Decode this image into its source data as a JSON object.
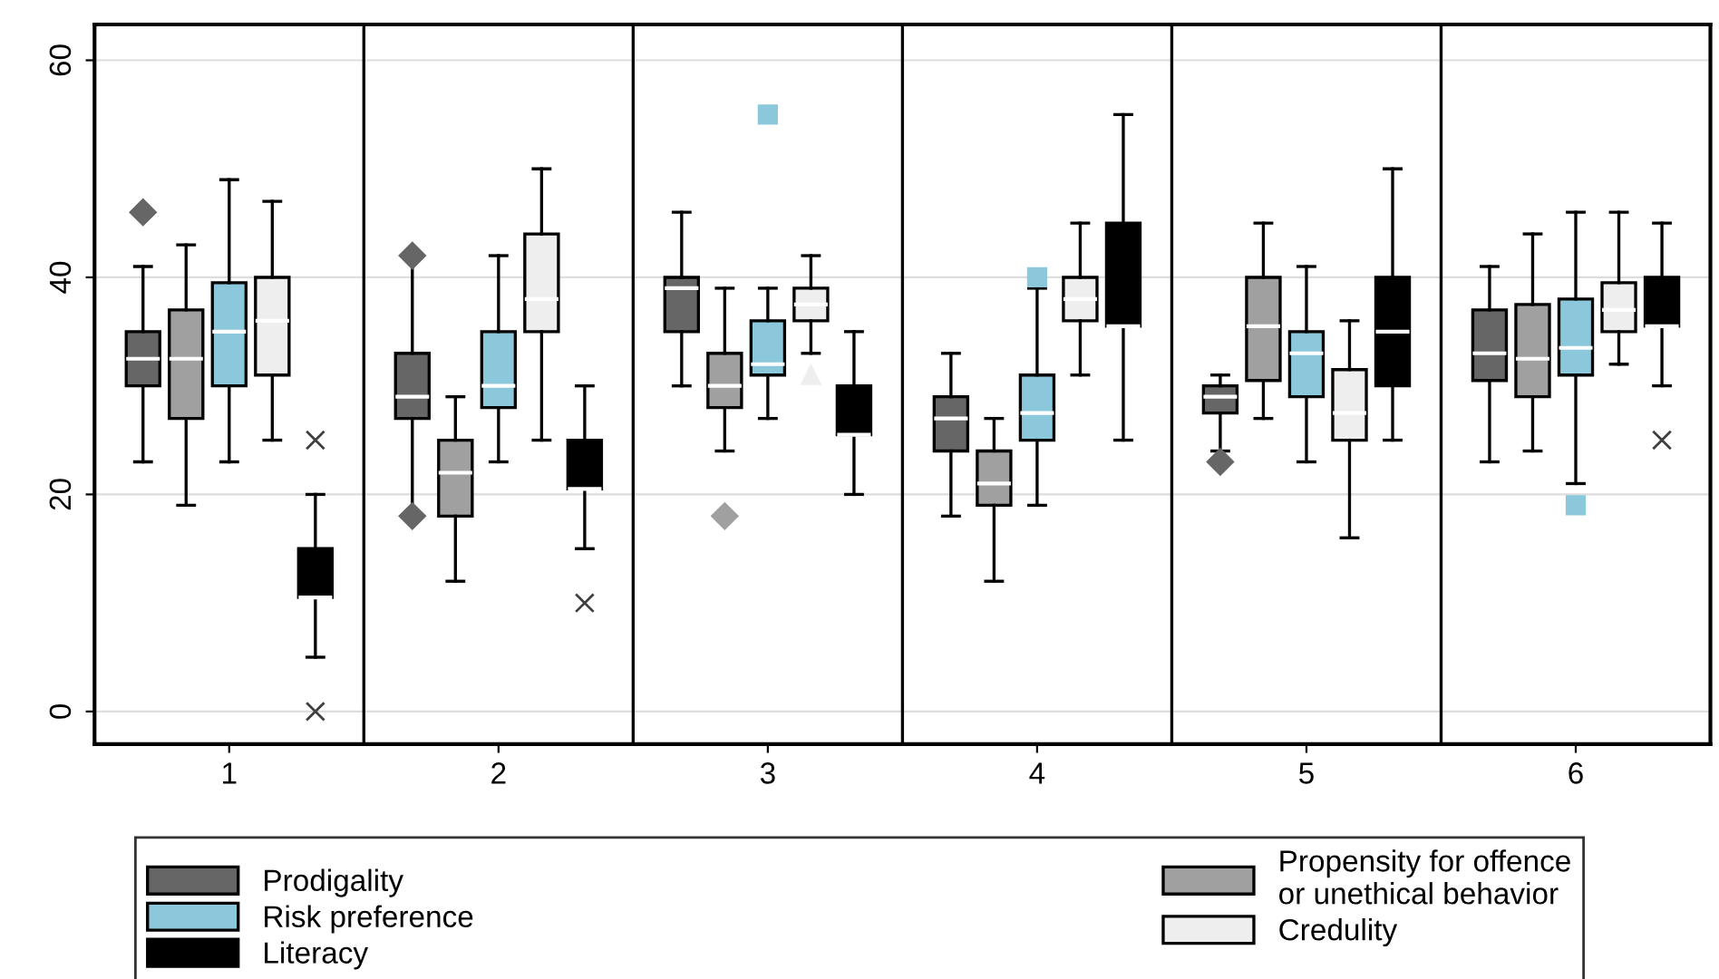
{
  "chart_data": {
    "type": "box",
    "categories": [
      "1",
      "2",
      "3",
      "4",
      "5",
      "6"
    ],
    "ylim": [
      -3,
      63.3
    ],
    "yticks": [
      0,
      20,
      40,
      60
    ],
    "grid": "y",
    "legend": "bottom",
    "series": [
      {
        "name": "Prodigality",
        "color": "#666666",
        "marker": "diamond",
        "boxes": [
          {
            "low": 23,
            "q1": 30,
            "median": 32.5,
            "q3": 35,
            "high": 41,
            "outliers": [
              46
            ]
          },
          {
            "low": 18,
            "q1": 27,
            "median": 29,
            "q3": 33,
            "high": 42,
            "outliers": [
              18,
              42
            ]
          },
          {
            "low": 30,
            "q1": 35,
            "median": 39,
            "q3": 40,
            "high": 46
          },
          {
            "low": 18,
            "q1": 24,
            "median": 27,
            "q3": 29,
            "high": 33
          },
          {
            "low": 24,
            "q1": 27.5,
            "median": 29,
            "q3": 30,
            "high": 31,
            "outliers": [
              23
            ]
          },
          {
            "low": 23,
            "q1": 30.5,
            "median": 33,
            "q3": 37,
            "high": 41
          }
        ]
      },
      {
        "name": "Propensity for offence\nor unethical behavior",
        "color": "#a0a0a0",
        "marker": "diamond",
        "boxes": [
          {
            "low": 19,
            "q1": 27,
            "median": 32.5,
            "q3": 37,
            "high": 43
          },
          {
            "low": 12,
            "q1": 18,
            "median": 22,
            "q3": 25,
            "high": 29
          },
          {
            "low": 24,
            "q1": 28,
            "median": 30,
            "q3": 33,
            "high": 39,
            "outliers": [
              18
            ]
          },
          {
            "low": 12,
            "q1": 19,
            "median": 21,
            "q3": 24,
            "high": 27
          },
          {
            "low": 27,
            "q1": 30.5,
            "median": 35.5,
            "q3": 40,
            "high": 45
          },
          {
            "low": 24,
            "q1": 29,
            "median": 32.5,
            "q3": 37.5,
            "high": 44
          }
        ]
      },
      {
        "name": "Risk preference",
        "color": "#8cc8dc",
        "marker": "square",
        "boxes": [
          {
            "low": 23,
            "q1": 30,
            "median": 35,
            "q3": 39.5,
            "high": 49
          },
          {
            "low": 23,
            "q1": 28,
            "median": 30,
            "q3": 35,
            "high": 42
          },
          {
            "low": 27,
            "q1": 31,
            "median": 32,
            "q3": 36,
            "high": 39,
            "outliers": [
              55
            ]
          },
          {
            "low": 19,
            "q1": 25,
            "median": 27.5,
            "q3": 31,
            "high": 39,
            "outliers": [
              40
            ]
          },
          {
            "low": 23,
            "q1": 29,
            "median": 33,
            "q3": 35,
            "high": 41
          },
          {
            "low": 21,
            "q1": 31,
            "median": 33.5,
            "q3": 38,
            "high": 46,
            "outliers": [
              19
            ]
          }
        ]
      },
      {
        "name": "Credulity",
        "color": "#eeeeee",
        "marker": "triangle",
        "boxes": [
          {
            "low": 25,
            "q1": 31,
            "median": 36,
            "q3": 40,
            "high": 47
          },
          {
            "low": 25,
            "q1": 35,
            "median": 38,
            "q3": 44,
            "high": 50
          },
          {
            "low": 33,
            "q1": 36,
            "median": 37.5,
            "q3": 39,
            "high": 42,
            "outliers": [
              31
            ]
          },
          {
            "low": 31,
            "q1": 36,
            "median": 38,
            "q3": 40,
            "high": 45
          },
          {
            "low": 16,
            "q1": 25,
            "median": 27.5,
            "q3": 31.5,
            "high": 36
          },
          {
            "low": 32,
            "q1": 35,
            "median": 37,
            "q3": 39.5,
            "high": 46
          }
        ]
      },
      {
        "name": "Literacy",
        "color": "#000000",
        "marker": "cross",
        "boxes": [
          {
            "low": 5,
            "q1": 10.5,
            "median": 10.5,
            "q3": 15,
            "high": 20,
            "outliers": [
              25,
              0
            ]
          },
          {
            "low": 15,
            "q1": 20.5,
            "median": 20.5,
            "q3": 25,
            "high": 30,
            "outliers": [
              10
            ]
          },
          {
            "low": 20,
            "q1": 25.5,
            "median": 25.5,
            "q3": 30,
            "high": 35
          },
          {
            "low": 25,
            "q1": 35.5,
            "median": 35.5,
            "q3": 45,
            "high": 55
          },
          {
            "low": 25,
            "q1": 30,
            "median": 35,
            "q3": 40,
            "high": 50
          },
          {
            "low": 30,
            "q1": 35.5,
            "median": 35.5,
            "q3": 40,
            "high": 45,
            "outliers": [
              25
            ]
          }
        ]
      }
    ]
  }
}
